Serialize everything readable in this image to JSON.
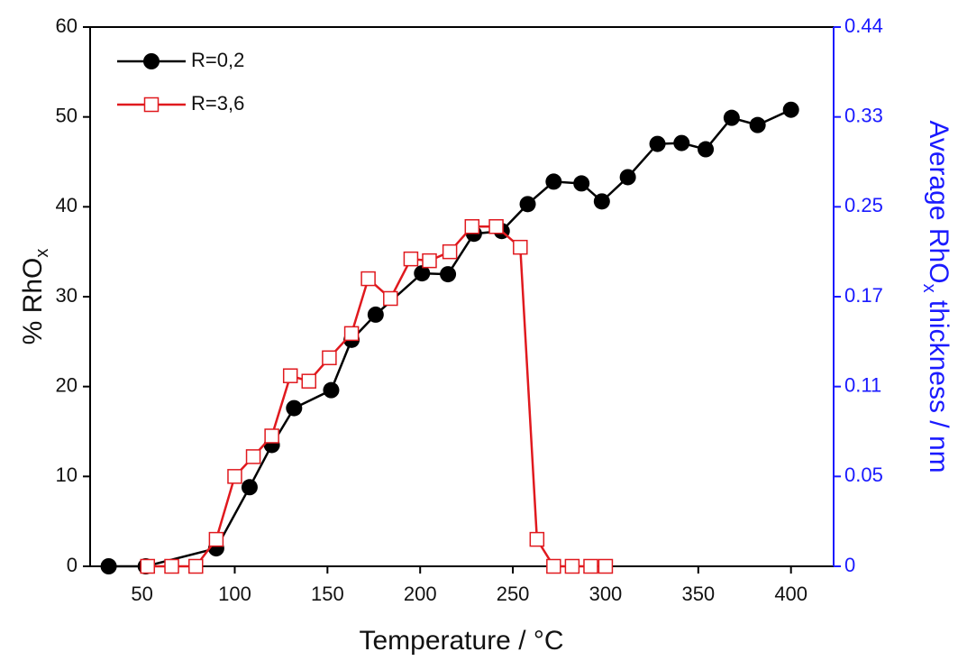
{
  "chart_data": {
    "type": "line",
    "xlabel": "Temperature / °C",
    "ylabel": [
      "% RhO",
      "x"
    ],
    "y2label": [
      "Average RhO",
      "x",
      " thickness / nm"
    ],
    "xlim": [
      22,
      423
    ],
    "xticks": [
      50,
      100,
      150,
      200,
      250,
      300,
      350,
      400
    ],
    "ylim": [
      0,
      60
    ],
    "yticks": [
      0,
      10,
      20,
      30,
      40,
      50,
      60
    ],
    "y2tick_labels": [
      "0",
      "0.05",
      "0.11",
      "0.17",
      "0.25",
      "0.33",
      "0.44"
    ],
    "y2color": "#1a1aff",
    "legend": "upper left",
    "series": [
      {
        "name": "R=0,2",
        "color": "#000000",
        "marker": "circle",
        "x": [
          32,
          52,
          90,
          108,
          120,
          132,
          152,
          163,
          176,
          201,
          215,
          229,
          244,
          258,
          272,
          287,
          298,
          312,
          328,
          341,
          354,
          368,
          382,
          400
        ],
        "values": [
          0,
          0,
          2,
          8.8,
          13.5,
          17.6,
          19.6,
          25.2,
          28,
          32.6,
          32.5,
          37,
          37.3,
          40.3,
          42.8,
          42.6,
          40.6,
          43.3,
          47,
          47.1,
          46.4,
          49.9,
          49.1,
          50.8
        ]
      },
      {
        "name": "R=3,6",
        "color": "#e0191e",
        "marker": "square",
        "x": [
          53,
          66,
          79,
          90,
          100,
          110,
          120,
          130,
          140,
          151,
          163,
          172,
          184,
          195,
          205,
          216,
          228,
          241,
          254,
          263,
          272,
          282,
          292,
          300
        ],
        "values": [
          0,
          0,
          0,
          3,
          10,
          12.2,
          14.5,
          21.2,
          20.6,
          23.2,
          25.9,
          32,
          29.8,
          34.2,
          34,
          35,
          37.8,
          37.8,
          35.5,
          3,
          0,
          0,
          0,
          0
        ]
      }
    ]
  }
}
